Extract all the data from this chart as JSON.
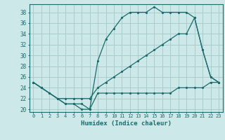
{
  "xlabel": "Humidex (Indice chaleur)",
  "bg_color": "#cce8e8",
  "grid_color": "#aacccc",
  "line_color": "#1a6b6b",
  "xlim": [
    -0.5,
    23.5
  ],
  "ylim": [
    19.5,
    39.5
  ],
  "xticks": [
    0,
    1,
    2,
    3,
    4,
    5,
    6,
    7,
    8,
    9,
    10,
    11,
    12,
    13,
    14,
    15,
    16,
    17,
    18,
    19,
    20,
    21,
    22,
    23
  ],
  "yticks": [
    20,
    22,
    24,
    26,
    28,
    30,
    32,
    34,
    36,
    38
  ],
  "line1_x": [
    0,
    1,
    2,
    3,
    4,
    5,
    6,
    7,
    8,
    9,
    10,
    11,
    12,
    13,
    14,
    15,
    16,
    17,
    18,
    19,
    20,
    21,
    22,
    23
  ],
  "line1_y": [
    25,
    24,
    23,
    22,
    21,
    21,
    21,
    20,
    23,
    23,
    23,
    23,
    23,
    23,
    23,
    23,
    23,
    23,
    24,
    24,
    24,
    24,
    25,
    25
  ],
  "line2_x": [
    0,
    1,
    2,
    3,
    4,
    5,
    6,
    7,
    8,
    9,
    10,
    11,
    12,
    13,
    14,
    15,
    16,
    17,
    18,
    19,
    20,
    21,
    22,
    23
  ],
  "line2_y": [
    25,
    24,
    23,
    22,
    21,
    21,
    20,
    20,
    29,
    33,
    35,
    37,
    38,
    38,
    38,
    39,
    38,
    38,
    38,
    38,
    37,
    31,
    26,
    25
  ],
  "line3_x": [
    0,
    1,
    2,
    3,
    4,
    5,
    6,
    7,
    8,
    9,
    10,
    11,
    12,
    13,
    14,
    15,
    16,
    17,
    18,
    19,
    20,
    21,
    22,
    23
  ],
  "line3_y": [
    25,
    24,
    23,
    22,
    22,
    22,
    22,
    22,
    24,
    25,
    26,
    27,
    28,
    29,
    30,
    31,
    32,
    33,
    34,
    34,
    37,
    31,
    26,
    25
  ]
}
